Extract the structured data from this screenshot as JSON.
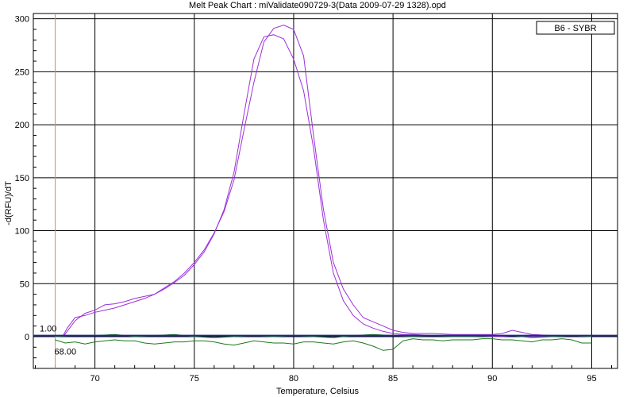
{
  "chart_data": {
    "type": "line",
    "title": "Melt Peak Chart : miValidate090729-3(Data 2009-07-29 1328).opd",
    "xlabel": "Temperature, Celsius",
    "ylabel": "-d(RFU)/dT",
    "xlim": [
      66.9,
      96.3
    ],
    "ylim": [
      -30,
      305
    ],
    "xticks": [
      70,
      75,
      80,
      85,
      90,
      95
    ],
    "yticks": [
      0,
      50,
      100,
      150,
      200,
      250,
      300
    ],
    "grid": true,
    "legend": {
      "label": "B6 - SYBR",
      "position": "top-right"
    },
    "annotations": {
      "threshold_label": "1.00",
      "threshold_value": 1.0,
      "begin_temp_label": "68.00",
      "begin_temp_value": 68.0
    },
    "colors": {
      "peak": "#9b30d9",
      "green": "#1a7a1a",
      "baseline": "#1f2a8c",
      "cursor": "#e0895a",
      "grid": "#000000"
    },
    "series": [
      {
        "color": "#9b30d9",
        "x": [
          68.4,
          68.6,
          69.0,
          69.5,
          70.0,
          70.5,
          71.0,
          71.5,
          72.0,
          72.5,
          73.0,
          73.5,
          74.0,
          74.5,
          75.0,
          75.5,
          76.0,
          76.5,
          77.0,
          77.5,
          78.0,
          78.5,
          79.0,
          79.5,
          80.0,
          80.5,
          81.0,
          81.5,
          82.0,
          82.5,
          83.0,
          83.5,
          84.0,
          84.5,
          85.0,
          85.5,
          86.0,
          87.0,
          88.0,
          89.0,
          90.0,
          90.5,
          91.0,
          91.5,
          92.0,
          93.0,
          94.0,
          95.0
        ],
        "y": [
          0,
          5,
          15,
          22,
          25,
          30,
          31,
          33,
          36,
          38,
          40,
          46,
          52,
          60,
          70,
          82,
          98,
          118,
          148,
          195,
          240,
          278,
          291,
          294,
          290,
          265,
          190,
          120,
          70,
          45,
          30,
          18,
          14,
          10,
          6,
          4,
          3,
          3,
          2,
          2,
          2,
          3,
          6,
          4,
          2,
          1,
          1,
          1
        ]
      },
      {
        "color": "#9b30d9",
        "x": [
          68.4,
          68.6,
          69.0,
          69.5,
          70.0,
          70.5,
          71.0,
          71.5,
          72.0,
          72.5,
          73.0,
          73.5,
          74.0,
          74.5,
          75.0,
          75.5,
          76.0,
          76.5,
          77.0,
          77.5,
          78.0,
          78.5,
          79.0,
          79.5,
          80.0,
          80.5,
          81.0,
          81.5,
          82.0,
          82.5,
          83.0,
          83.5,
          84.0,
          84.5,
          85.0,
          85.5,
          86.0,
          87.0,
          88.0,
          89.0,
          90.0,
          90.5,
          91.0,
          91.5,
          92.0,
          93.0,
          94.0,
          95.0
        ],
        "y": [
          1,
          8,
          18,
          20,
          23,
          25,
          27,
          30,
          33,
          36,
          40,
          45,
          51,
          58,
          68,
          80,
          97,
          120,
          155,
          210,
          262,
          283,
          285,
          281,
          262,
          232,
          178,
          110,
          60,
          34,
          20,
          12,
          8,
          5,
          3,
          2,
          2,
          1,
          1,
          1,
          0,
          0,
          1,
          0,
          0,
          0,
          1,
          0
        ]
      },
      {
        "color": "#1a7a1a",
        "x": [
          68.0,
          68.5,
          69.0,
          69.5,
          70.0,
          70.5,
          71.0,
          71.5,
          72.0,
          72.5,
          73.0,
          73.5,
          74.0,
          74.5,
          75.0,
          75.5,
          76.0,
          76.5,
          77.0,
          77.5,
          78.0,
          78.5,
          79.0,
          79.5,
          80.0,
          80.5,
          81.0,
          81.5,
          82.0,
          82.5,
          83.0,
          83.5,
          84.0,
          84.5,
          85.0,
          85.5,
          86.0,
          86.5,
          87.0,
          87.5,
          88.0,
          88.5,
          89.0,
          89.5,
          90.0,
          90.5,
          91.0,
          91.5,
          92.0,
          92.5,
          93.0,
          93.5,
          94.0,
          94.5,
          95.0
        ],
        "y": [
          -3,
          -6,
          -5,
          -7,
          -5,
          -4,
          -3,
          -4,
          -4,
          -6,
          -7,
          -6,
          -5,
          -5,
          -4,
          -4,
          -5,
          -7,
          -8,
          -6,
          -4,
          -5,
          -6,
          -6,
          -7,
          -5,
          -5,
          -6,
          -7,
          -5,
          -4,
          -6,
          -9,
          -13,
          -12,
          -4,
          -2,
          -3,
          -3,
          -4,
          -3,
          -3,
          -3,
          -2,
          -2,
          -3,
          -3,
          -4,
          -5,
          -3,
          -3,
          -2,
          -3,
          -6,
          -6
        ]
      },
      {
        "color": "#1a7a1a",
        "x": [
          68.0,
          69.0,
          70.0,
          71.0,
          72.0,
          73.0,
          74.0,
          75.0,
          76.0,
          77.0,
          78.0,
          79.0,
          80.0,
          81.0,
          82.0,
          83.0,
          84.0,
          85.0,
          86.0,
          87.0,
          88.0,
          89.0,
          90.0,
          91.0,
          92.0,
          93.0,
          94.0,
          95.0
        ],
        "y": [
          0,
          1,
          1,
          2,
          0,
          1,
          2,
          0,
          -1,
          0,
          1,
          0,
          1,
          0,
          -1,
          1,
          2,
          1,
          0,
          1,
          0,
          0,
          1,
          1,
          -1,
          0,
          1,
          0
        ]
      }
    ]
  }
}
